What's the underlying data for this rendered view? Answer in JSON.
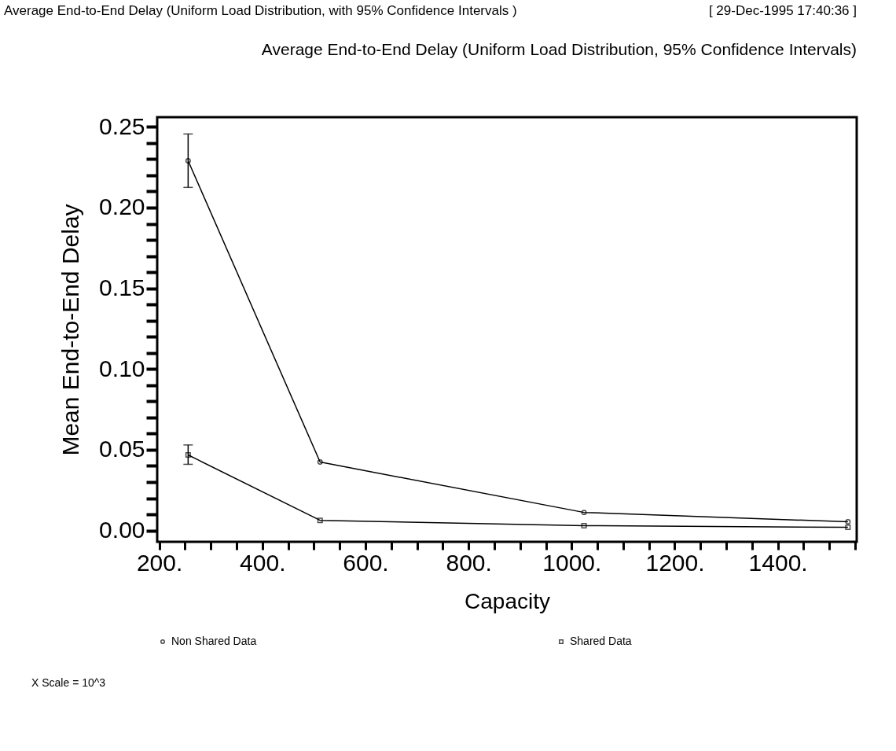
{
  "chart_data": {
    "type": "line",
    "title": "Average End-to-End Delay (Uniform Load Distribution, 95% Confidence Intervals)",
    "xlabel": "Capacity",
    "ylabel": "Mean End-to-End Delay",
    "annotations": [
      "Average End-to-End Delay (Uniform Load Distribution, with 95% Confidence Intervals )",
      "[ 29-Dec-1995 17:40:36 ]",
      "X Scale =    10^3"
    ],
    "x": [
      256,
      512,
      1024,
      1536
    ],
    "series": [
      {
        "name": "Non Shared Data",
        "color": "#000000",
        "marker": "circle",
        "values": [
          0.229,
          0.0424,
          0.0112,
          0.0054
        ],
        "errors": [
          [
            0.2125,
            0.2456
          ],
          null,
          null,
          null
        ]
      },
      {
        "name": "Shared Data",
        "color": "#000000",
        "marker": "square",
        "values": [
          0.0468,
          0.0063,
          0.003,
          0.002
        ],
        "errors": [
          [
            0.041,
            0.053
          ],
          null,
          null,
          null
        ]
      }
    ],
    "xlim": [
      196,
      1553
    ],
    "ylim": [
      -0.007,
      0.256
    ],
    "xticks": [
      {
        "value": 200,
        "label": "200."
      },
      {
        "value": 250,
        "label": null
      },
      {
        "value": 300,
        "label": null
      },
      {
        "value": 350,
        "label": null
      },
      {
        "value": 400,
        "label": "400."
      },
      {
        "value": 450,
        "label": null
      },
      {
        "value": 500,
        "label": null
      },
      {
        "value": 550,
        "label": null
      },
      {
        "value": 600,
        "label": "600."
      },
      {
        "value": 650,
        "label": null
      },
      {
        "value": 700,
        "label": null
      },
      {
        "value": 750,
        "label": null
      },
      {
        "value": 800,
        "label": "800."
      },
      {
        "value": 850,
        "label": null
      },
      {
        "value": 900,
        "label": null
      },
      {
        "value": 950,
        "label": null
      },
      {
        "value": 1000,
        "label": "1000."
      },
      {
        "value": 1050,
        "label": null
      },
      {
        "value": 1100,
        "label": null
      },
      {
        "value": 1150,
        "label": null
      },
      {
        "value": 1200,
        "label": "1200."
      },
      {
        "value": 1250,
        "label": null
      },
      {
        "value": 1300,
        "label": null
      },
      {
        "value": 1350,
        "label": null
      },
      {
        "value": 1400,
        "label": "1400."
      },
      {
        "value": 1450,
        "label": null
      },
      {
        "value": 1500,
        "label": null
      },
      {
        "value": 1550,
        "label": null
      }
    ],
    "yticks": [
      {
        "value": 0,
        "label": "0.00"
      },
      {
        "value": 0.01,
        "label": null
      },
      {
        "value": 0.02,
        "label": null
      },
      {
        "value": 0.03,
        "label": null
      },
      {
        "value": 0.04,
        "label": null
      },
      {
        "value": 0.05,
        "label": "0.05"
      },
      {
        "value": 0.06,
        "label": null
      },
      {
        "value": 0.07,
        "label": null
      },
      {
        "value": 0.08,
        "label": null
      },
      {
        "value": 0.09,
        "label": null
      },
      {
        "value": 0.1,
        "label": "0.10"
      },
      {
        "value": 0.11,
        "label": null
      },
      {
        "value": 0.12,
        "label": null
      },
      {
        "value": 0.13,
        "label": null
      },
      {
        "value": 0.14,
        "label": null
      },
      {
        "value": 0.15,
        "label": "0.15"
      },
      {
        "value": 0.16,
        "label": null
      },
      {
        "value": 0.17,
        "label": null
      },
      {
        "value": 0.18,
        "label": null
      },
      {
        "value": 0.19,
        "label": null
      },
      {
        "value": 0.2,
        "label": "0.20"
      },
      {
        "value": 0.21,
        "label": null
      },
      {
        "value": 0.22,
        "label": null
      },
      {
        "value": 0.23,
        "label": null
      },
      {
        "value": 0.24,
        "label": null
      },
      {
        "value": 0.25,
        "label": "0.25"
      }
    ],
    "grid": false,
    "legend": "bottom",
    "line_style": "solid"
  }
}
